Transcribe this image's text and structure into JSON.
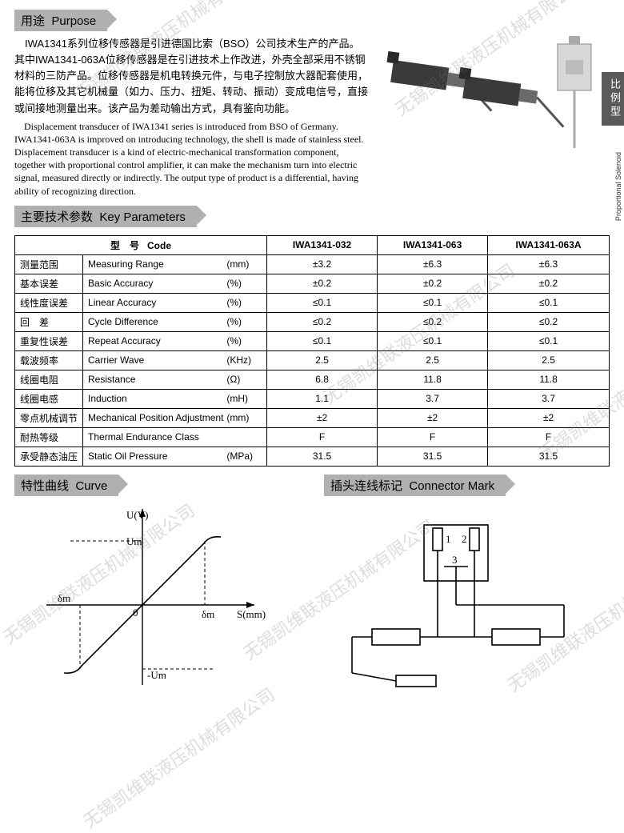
{
  "watermark_text": "无锡凯维联液压机械有限公司",
  "side_tab_cn": "比例型",
  "side_tab_en": "Proportional Solenoid",
  "sections": {
    "purpose": {
      "cn": "用途",
      "en": "Purpose"
    },
    "params": {
      "cn": "主要技术参数",
      "en": "Key Parameters"
    },
    "curve": {
      "cn": "特性曲线",
      "en": "Curve"
    },
    "connector": {
      "cn": "插头连线标记",
      "en": "Connector Mark"
    }
  },
  "purpose_cn": "　IWA1341系列位移传感器是引进德国比索（BSO）公司技术生产的产品。其中IWA1341-063A位移传感器是在引进技术上作改进，外壳全部采用不锈钢材料的三防产品。位移传感器是机电转换元件，与电子控制放大器配套使用，能将位移及其它机械量（如力、压力、扭矩、转动、振动）变成电信号，直接或间接地测量出来。该产品为差动输出方式，具有鉴向功能。",
  "purpose_en": "　Displacement transducer of IWA1341 series is introduced from BSO of Germany. IWA1341-063A is improved on introducing technology, the shell is made of stainless steel. Displacement transducer is a kind of electric-mechanical transformation component, together with proportional control amplifier, it can make the mechanism turn into electric signal, measured directly or indirectly. The output type of product is a differential, having ability of recognizing direction.",
  "table": {
    "code_label_cn": "型　号",
    "code_label_en": "Code",
    "columns": [
      "IWA1341-032",
      "IWA1341-063",
      "IWA1341-063A"
    ],
    "rows": [
      {
        "cn": "测量范围",
        "en": "Measuring Range",
        "unit": "(mm)",
        "v": [
          "±3.2",
          "±6.3",
          "±6.3"
        ]
      },
      {
        "cn": "基本误差",
        "en": "Basic Accuracy",
        "unit": "(%)",
        "v": [
          "±0.2",
          "±0.2",
          "±0.2"
        ]
      },
      {
        "cn": "线性度误差",
        "en": "Linear Accuracy",
        "unit": "(%)",
        "v": [
          "≤0.1",
          "≤0.1",
          "≤0.1"
        ]
      },
      {
        "cn": "回　差",
        "en": "Cycle Difference",
        "unit": "(%)",
        "v": [
          "≤0.2",
          "≤0.2",
          "≤0.2"
        ]
      },
      {
        "cn": "重复性误差",
        "en": "Repeat Accuracy",
        "unit": "(%)",
        "v": [
          "≤0.1",
          "≤0.1",
          "≤0.1"
        ]
      },
      {
        "cn": "载波频率",
        "en": "Carrier Wave",
        "unit": "(KHz)",
        "v": [
          "2.5",
          "2.5",
          "2.5"
        ]
      },
      {
        "cn": "线圈电阻",
        "en": "Resistance",
        "unit": "(Ω)",
        "v": [
          "6.8",
          "11.8",
          "11.8"
        ]
      },
      {
        "cn": "线圈电感",
        "en": "Induction",
        "unit": "(mH)",
        "v": [
          "1.1",
          "3.7",
          "3.7"
        ]
      },
      {
        "cn": "零点机械调节",
        "en": "Mechanical Position Adjustment",
        "unit": "(mm)",
        "v": [
          "±2",
          "±2",
          "±2"
        ]
      },
      {
        "cn": "耐热等级",
        "en": "Thermal Endurance Class",
        "unit": "",
        "v": [
          "F",
          "F",
          "F"
        ]
      },
      {
        "cn": "承受静态油压",
        "en": "Static Oil Pressure",
        "unit": "(MPa)",
        "v": [
          "31.5",
          "31.5",
          "31.5"
        ]
      }
    ]
  },
  "curve": {
    "y_label": "U(V)",
    "x_label": "S(mm)",
    "y_upper": "Um",
    "y_lower": "-Um",
    "x_right": "δm",
    "x_left": "δm",
    "origin": "0",
    "line_color": "#000000",
    "dash_color": "#000000",
    "stroke_width": 1.4,
    "axis_color": "#000000"
  },
  "connector": {
    "pin1": "1",
    "pin2": "2",
    "pin3": "3",
    "line_color": "#000000",
    "stroke_width": 1.6
  },
  "colors": {
    "section_bg": "#b0b0b0",
    "side_tab_bg": "#5a5a5a",
    "text": "#000000",
    "watermark": "rgba(120,120,120,0.25)"
  }
}
